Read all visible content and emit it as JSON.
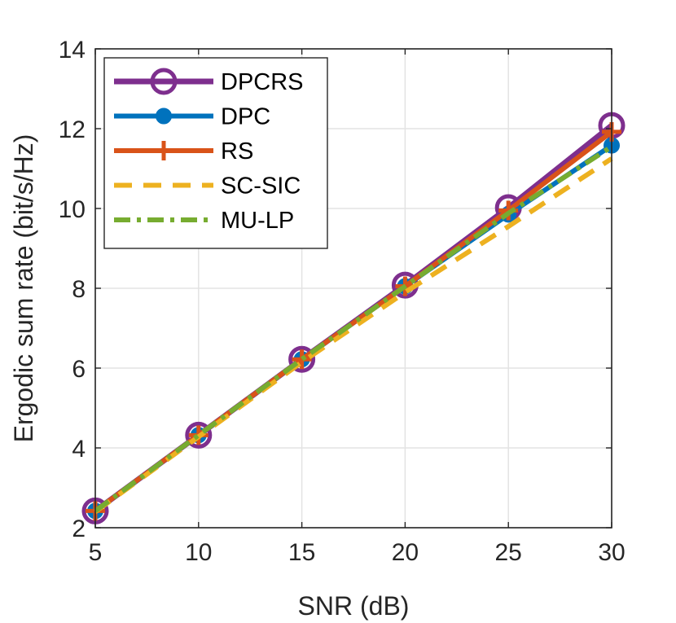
{
  "chart_data": {
    "type": "line",
    "title": "",
    "xlabel": "SNR (dB)",
    "ylabel": "Ergodic sum rate (bit/s/Hz)",
    "xlim": [
      5,
      30
    ],
    "ylim": [
      2,
      14
    ],
    "xticks": [
      5,
      10,
      15,
      20,
      25,
      30
    ],
    "yticks": [
      2,
      4,
      6,
      8,
      10,
      12,
      14
    ],
    "grid": true,
    "legend_position": "top-left",
    "x": [
      5,
      10,
      15,
      20,
      25,
      30
    ],
    "series": [
      {
        "name": "DPCRS",
        "values": [
          2.42,
          4.32,
          6.22,
          8.08,
          10.02,
          12.08
        ],
        "color": "#7E2F8E",
        "dash": "solid",
        "marker": "circle"
      },
      {
        "name": "DPC",
        "values": [
          2.42,
          4.32,
          6.22,
          8.05,
          9.85,
          11.58
        ],
        "color": "#0072BD",
        "dash": "solid",
        "marker": "dot"
      },
      {
        "name": "RS",
        "values": [
          2.42,
          4.32,
          6.22,
          8.05,
          9.95,
          11.92
        ],
        "color": "#D95319",
        "dash": "solid",
        "marker": "plus"
      },
      {
        "name": "SC-SIC",
        "values": [
          2.4,
          4.28,
          6.15,
          7.9,
          9.55,
          11.25
        ],
        "color": "#EDB120",
        "dash": "dashed",
        "marker": "none"
      },
      {
        "name": "MU-LP",
        "values": [
          2.42,
          4.32,
          6.22,
          8.05,
          9.88,
          11.55
        ],
        "color": "#77AC30",
        "dash": "dashdot",
        "marker": "none"
      }
    ]
  }
}
